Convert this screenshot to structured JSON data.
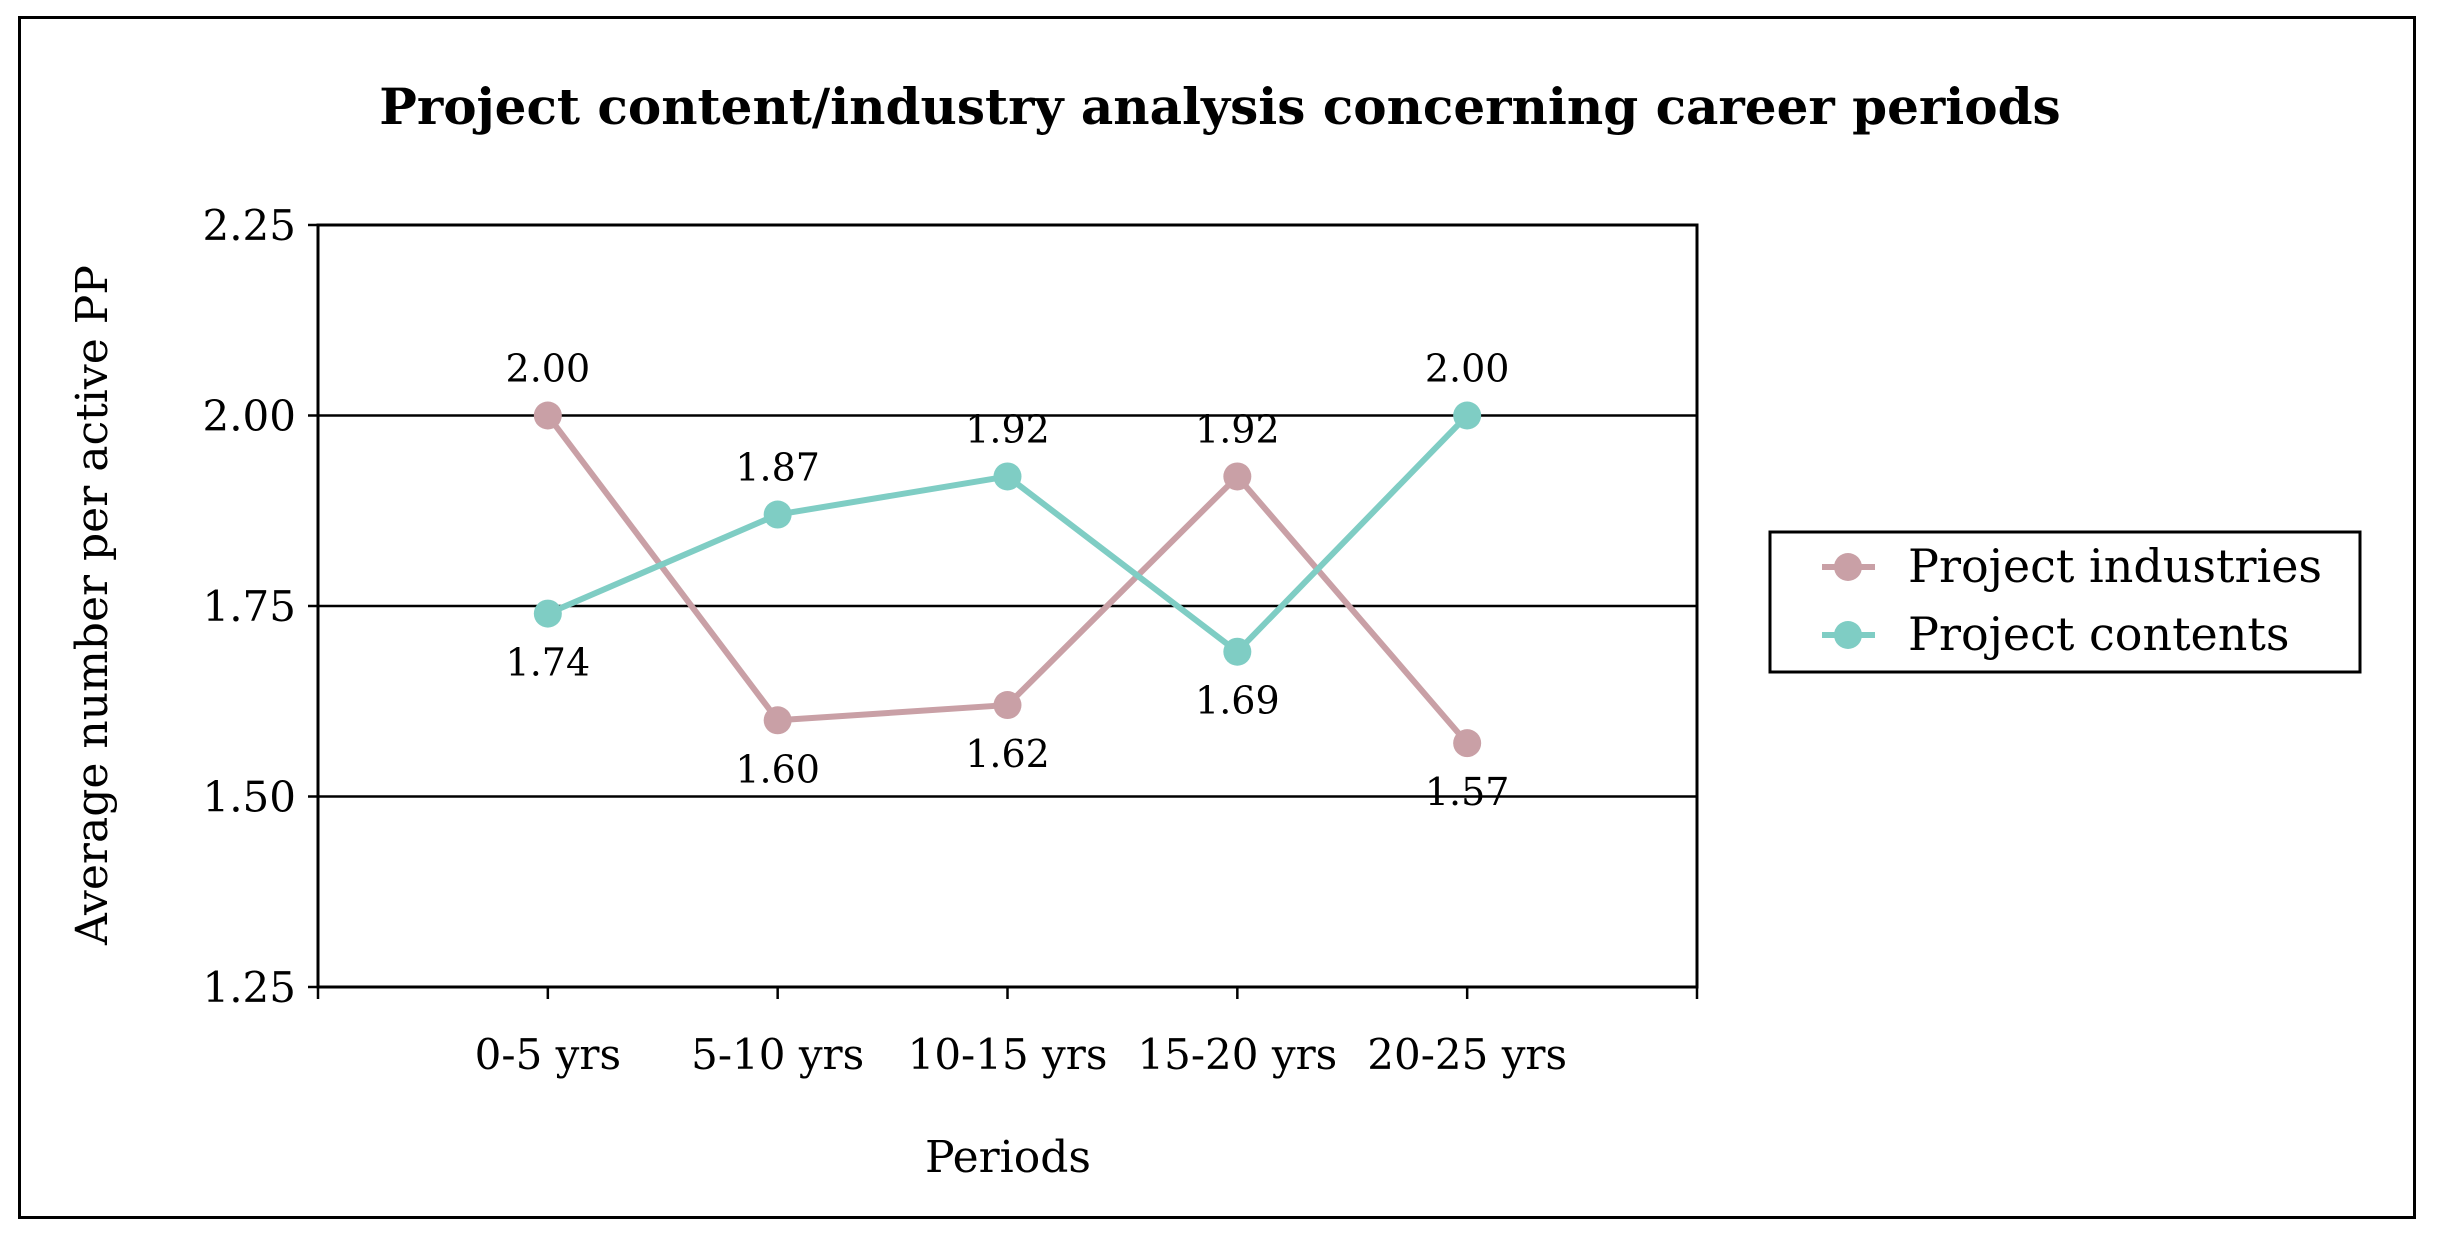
{
  "chart_data": {
    "type": "line",
    "title": "Project content/industry analysis concerning career periods",
    "xlabel": "Periods",
    "ylabel": "Average number per active PP",
    "categories": [
      "0-5 yrs",
      "5-10 yrs",
      "10-15 yrs",
      "15-20 yrs",
      "20-25 yrs"
    ],
    "ylim": [
      1.25,
      2.25
    ],
    "yticks": [
      "1.25",
      "1.50",
      "1.75",
      "2.00",
      "2.25"
    ],
    "grid": true,
    "legend_position": "right",
    "series": [
      {
        "name": "Project industries",
        "color": "#c9a0a6",
        "values": [
          2.0,
          1.6,
          1.62,
          1.92,
          1.57
        ],
        "labels": [
          "2.00",
          "1.60",
          "1.62",
          "1.92",
          "1.57"
        ]
      },
      {
        "name": "Project contents",
        "color": "#7fcdc4",
        "values": [
          1.74,
          1.87,
          1.92,
          1.69,
          2.0
        ],
        "labels": [
          "1.74",
          "1.87",
          "1.92",
          "1.69",
          "2.00"
        ]
      }
    ]
  }
}
